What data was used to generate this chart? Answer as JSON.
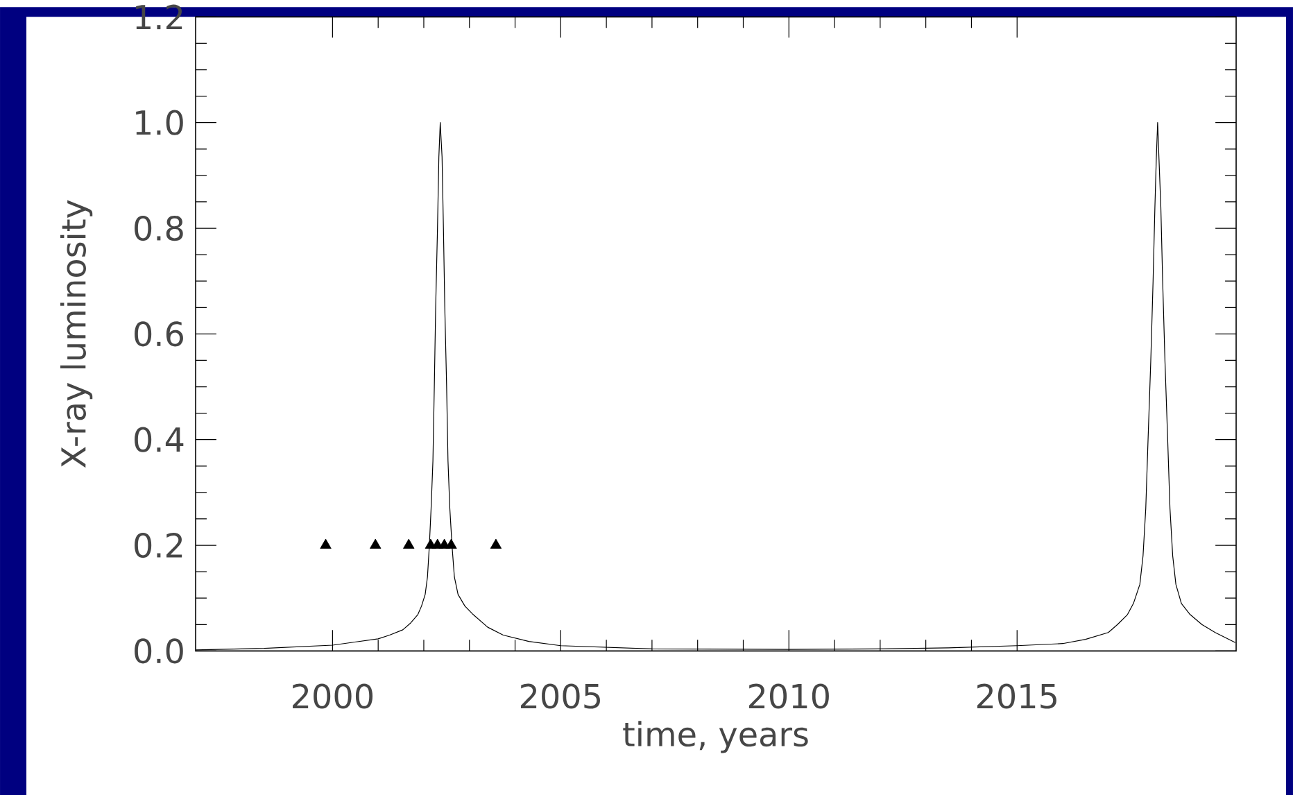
{
  "chart_data": {
    "type": "line",
    "xlabel": "time, years",
    "ylabel": "X-ray luminosity",
    "xlim": [
      1997,
      2019.8
    ],
    "ylim": [
      0,
      1.2
    ],
    "xticks": [
      2000,
      2005,
      2010,
      2015
    ],
    "yticks": [
      {
        "value": 0,
        "label": "0.0"
      },
      {
        "value": 0.2,
        "label": "0.2"
      },
      {
        "value": 0.4,
        "label": "0.4"
      },
      {
        "value": 0.6,
        "label": "0.6"
      },
      {
        "value": 0.8,
        "label": "0.8"
      },
      {
        "value": 1.0,
        "label": "1.0"
      },
      {
        "value": 1.2,
        "label": "1.2"
      }
    ],
    "series": [
      {
        "color": "#000000",
        "marker": "none",
        "x": [
          1997.0,
          1998.5,
          2000.0,
          2001.0,
          2001.25,
          2001.54,
          2001.7,
          2001.87,
          2001.95,
          2002.03,
          2002.08,
          2002.12,
          2002.16,
          2002.2,
          2002.23,
          2002.26,
          2002.3,
          2002.33,
          2002.36,
          2002.4,
          2002.43,
          2002.46,
          2002.5,
          2002.53,
          2002.57,
          2002.62,
          2002.67,
          2002.75,
          2002.9,
          2003.08,
          2003.4,
          2003.74,
          2004.3,
          2005.0,
          2007.0,
          2010.0,
          2012.0,
          2013.5,
          2015.0,
          2016.0,
          2016.5,
          2017.0,
          2017.2,
          2017.42,
          2017.55,
          2017.69,
          2017.76,
          2017.82,
          2017.87,
          2017.93,
          2017.98,
          2018.02,
          2018.05,
          2018.08,
          2018.11,
          2018.15,
          2018.19,
          2018.24,
          2018.3,
          2018.35,
          2018.41,
          2018.48,
          2018.6,
          2018.79,
          2019.05,
          2019.34,
          2019.78
        ],
        "values": [
          0.002,
          0.005,
          0.011,
          0.023,
          0.03,
          0.04,
          0.052,
          0.069,
          0.085,
          0.107,
          0.14,
          0.197,
          0.27,
          0.36,
          0.5,
          0.65,
          0.8,
          0.935,
          1.0,
          0.935,
          0.8,
          0.65,
          0.5,
          0.36,
          0.27,
          0.197,
          0.14,
          0.107,
          0.085,
          0.069,
          0.045,
          0.03,
          0.018,
          0.01,
          0.004,
          0.003,
          0.004,
          0.006,
          0.01,
          0.014,
          0.022,
          0.035,
          0.05,
          0.069,
          0.09,
          0.126,
          0.18,
          0.27,
          0.4,
          0.55,
          0.7,
          0.84,
          0.93,
          1.0,
          0.93,
          0.84,
          0.7,
          0.55,
          0.4,
          0.27,
          0.18,
          0.126,
          0.09,
          0.069,
          0.05,
          0.035,
          0.016
        ]
      },
      {
        "type": "scatter",
        "color": "#000000",
        "marker": "triangle",
        "x": [
          1999.85,
          2000.94,
          2001.67,
          2002.15,
          2002.3,
          2002.45,
          2002.6,
          2003.58
        ],
        "values": [
          0.2,
          0.2,
          0.2,
          0.2,
          0.2,
          0.2,
          0.2,
          0.2
        ]
      }
    ]
  }
}
